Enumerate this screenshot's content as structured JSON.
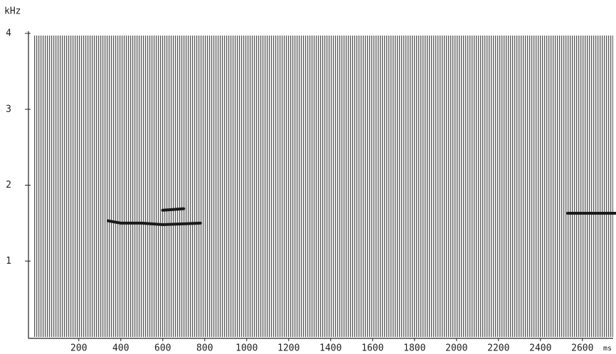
{
  "chart_data": {
    "type": "line",
    "y_label": "kHz",
    "x_label": "ms",
    "x": [
      340,
      400,
      500,
      600,
      700,
      780,
      1650,
      2530,
      2600,
      2700,
      2760
    ],
    "series": [
      {
        "color": "#1a1a1a",
        "values": [
          1.53,
          1.5,
          1.5,
          1.48,
          1.49,
          1.5,
          null,
          1.63,
          1.63,
          1.63,
          1.63
        ]
      },
      {
        "color": "#1a1a1a",
        "values": [
          null,
          null,
          null,
          1.67,
          1.69,
          null,
          null,
          null,
          null,
          null,
          null
        ]
      }
    ],
    "xlim": [
      -40,
      2760
    ],
    "xticks": [
      200,
      400,
      600,
      800,
      1000,
      1200,
      1400,
      1600,
      1800,
      2000,
      2200,
      2400,
      2600
    ],
    "ylim": [
      0,
      4
    ],
    "yticks": [
      1,
      2,
      3,
      4
    ]
  }
}
